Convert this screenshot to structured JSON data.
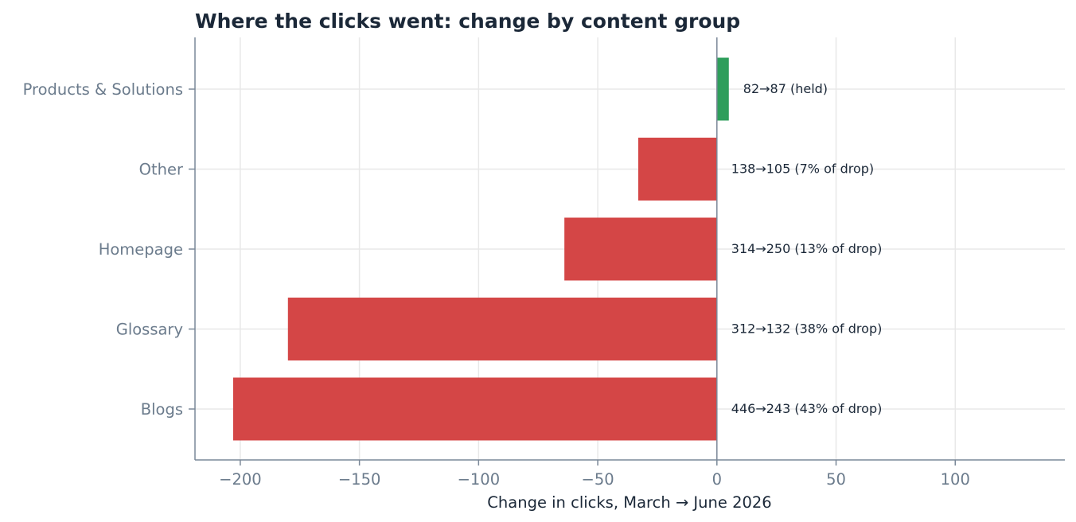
{
  "chart_data": {
    "type": "bar",
    "orientation": "horizontal",
    "title": "Where the clicks went: change by content group",
    "xlabel": "Change in clicks, March → June 2026",
    "ylabel": "",
    "xlim": [
      -219,
      146
    ],
    "xticks": [
      -200,
      -150,
      -100,
      -50,
      0,
      50,
      100
    ],
    "xtick_labels": [
      "−200",
      "−150",
      "−100",
      "−50",
      "0",
      "50",
      "100"
    ],
    "grid": true,
    "categories": [
      "Products & Solutions",
      "Other",
      "Homepage",
      "Glossary",
      "Blogs"
    ],
    "values": [
      5,
      -33,
      -64,
      -180,
      -203
    ],
    "annotations": [
      "82→87   (held)",
      "138→105   (7% of drop)",
      "314→250   (13% of drop)",
      "312→132   (38% of drop)",
      "446→243   (43% of drop)"
    ],
    "colors": {
      "positive": "#2e9e5b",
      "negative": "#d44646",
      "grid": "#e8e8e8",
      "axis": "#7a8898"
    }
  }
}
